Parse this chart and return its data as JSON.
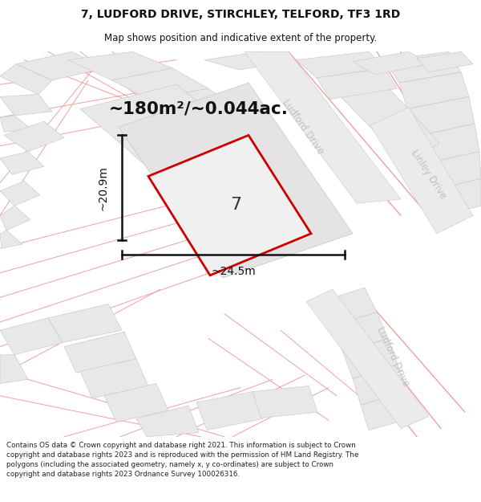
{
  "title_line1": "7, LUDFORD DRIVE, STIRCHLEY, TELFORD, TF3 1RD",
  "title_line2": "Map shows position and indicative extent of the property.",
  "area_text": "~180m²/~0.044ac.",
  "width_label": "~24.5m",
  "height_label": "~20.9m",
  "property_number": "7",
  "footer_text": "Contains OS data © Crown copyright and database right 2021. This information is subject to Crown copyright and database rights 2023 and is reproduced with the permission of HM Land Registry. The polygons (including the associated geometry, namely x, y co-ordinates) are subject to Crown copyright and database rights 2023 Ordnance Survey 100026316.",
  "map_bg": "#f5f4f4",
  "building_fill": "#e8e8e8",
  "building_edge": "#cccccc",
  "plot_line_color": "#f0a0a0",
  "property_fill": "#f0f0f0",
  "property_edge": "#cc0000",
  "road_text_color": "#bbbbbb",
  "dim_line_color": "#111111",
  "title_color": "#111111",
  "footer_color": "#222222"
}
